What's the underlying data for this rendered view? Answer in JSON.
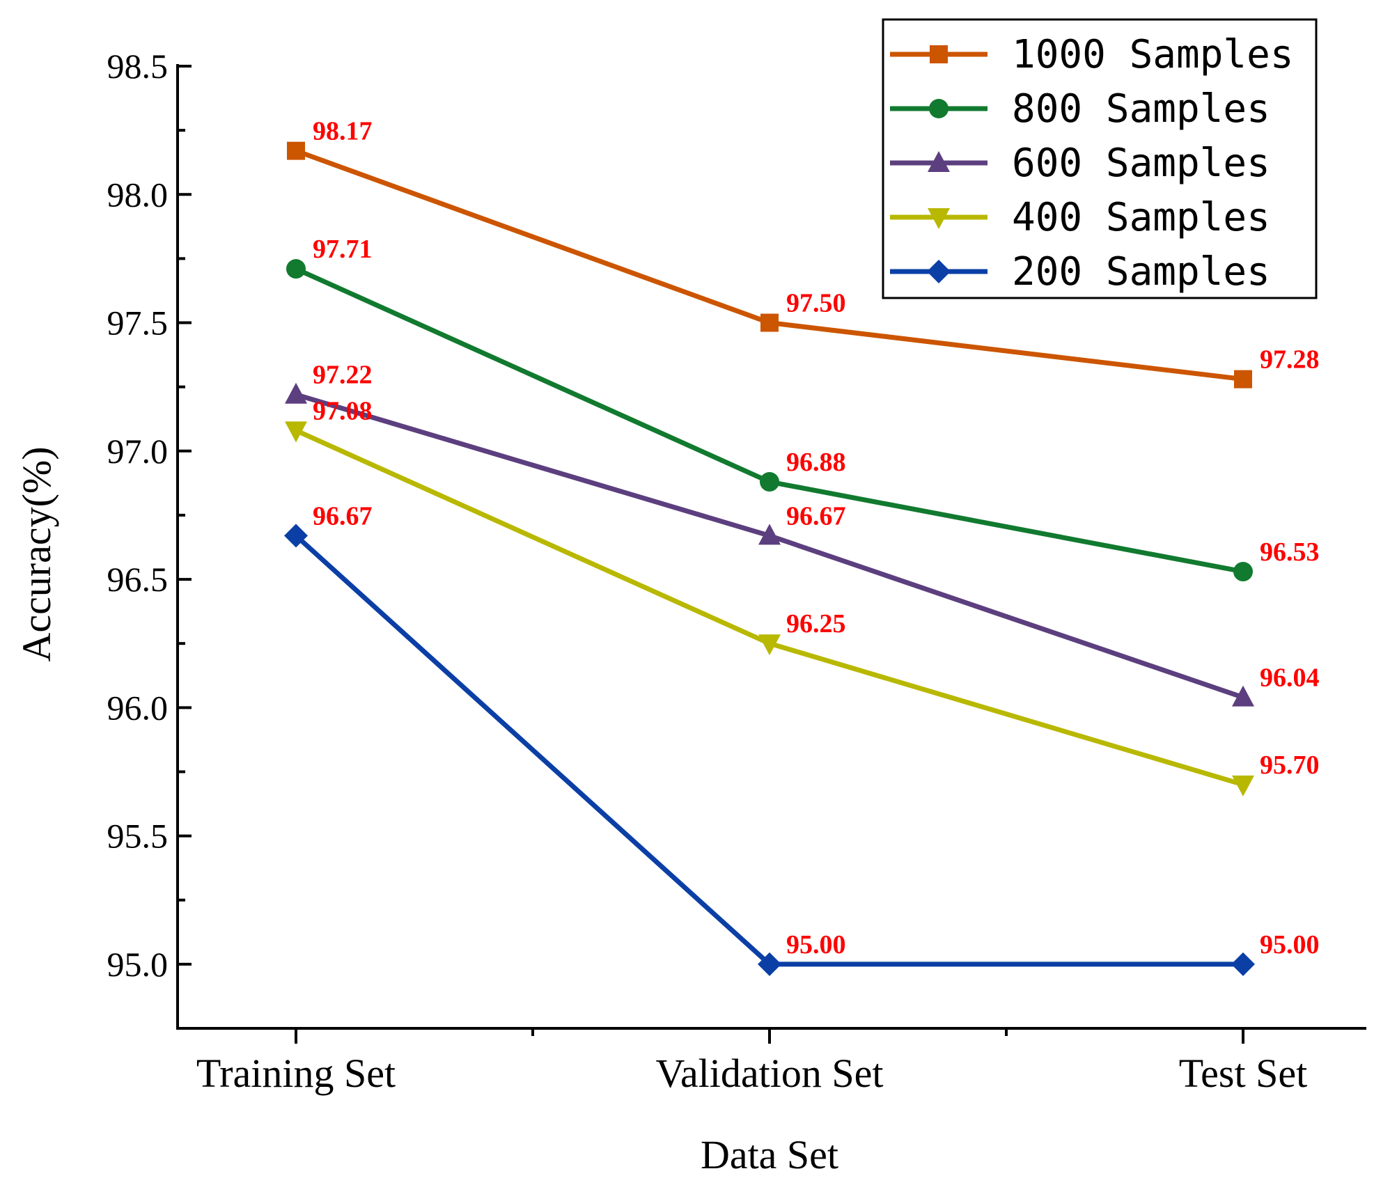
{
  "chart_data": {
    "type": "line",
    "title": "",
    "xlabel": "Data Set",
    "ylabel": "Accuracy(%)",
    "categories": [
      "Training Set",
      "Validation Set",
      "Test Set"
    ],
    "ylim": [
      94.75,
      98.5
    ],
    "yticks_labeled": [
      "95.0",
      "95.5",
      "96.0",
      "96.5",
      "97.0",
      "97.5",
      "98.0",
      "98.5"
    ],
    "label_color": "#ff0000",
    "legend_position": "top-right",
    "series": [
      {
        "name": "1000 Samples",
        "color": "#cc5500",
        "marker": "square",
        "values": [
          98.17,
          97.5,
          97.28
        ],
        "labels": [
          "98.17",
          "97.50",
          "97.28"
        ]
      },
      {
        "name": "800 Samples",
        "color": "#117a2f",
        "marker": "circle",
        "values": [
          97.71,
          96.88,
          96.53
        ],
        "labels": [
          "97.71",
          "96.88",
          "96.53"
        ]
      },
      {
        "name": "600 Samples",
        "color": "#5c3f7f",
        "marker": "triangle-up",
        "values": [
          97.22,
          96.67,
          96.04
        ],
        "labels": [
          "97.22",
          "96.67",
          "96.04"
        ]
      },
      {
        "name": "400 Samples",
        "color": "#b8b800",
        "marker": "triangle-down",
        "values": [
          97.08,
          96.25,
          95.7
        ],
        "labels": [
          "97.08",
          "96.25",
          "95.70"
        ]
      },
      {
        "name": "200 Samples",
        "color": "#0b3fa6",
        "marker": "diamond",
        "values": [
          96.67,
          95.0,
          95.0
        ],
        "labels": [
          "96.67",
          "95.00",
          "95.00"
        ]
      }
    ]
  }
}
